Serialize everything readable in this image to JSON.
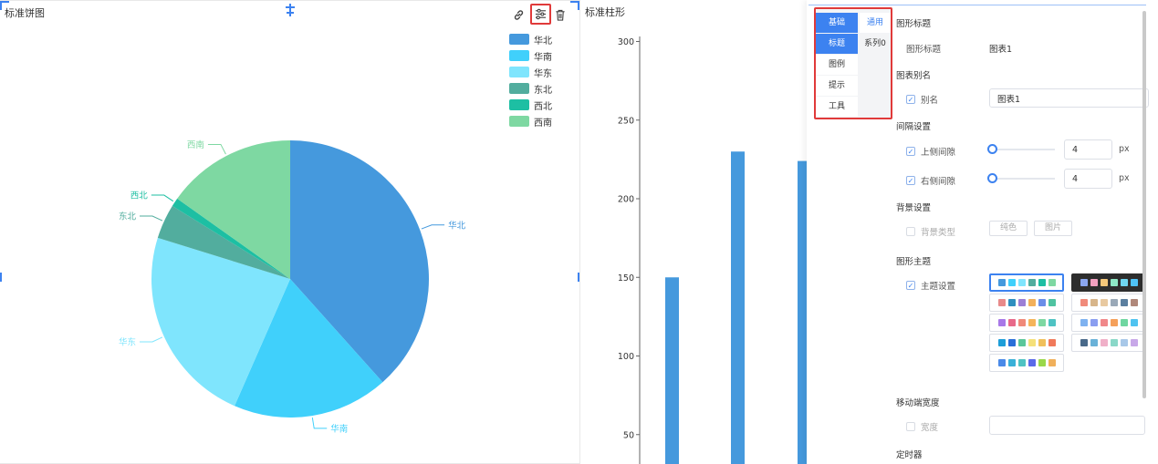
{
  "pie": {
    "title": "标准饼图",
    "legend": [
      {
        "name": "华北",
        "color": "#4599dd"
      },
      {
        "name": "华南",
        "color": "#40d0fb"
      },
      {
        "name": "华东",
        "color": "#7fe5fd"
      },
      {
        "name": "东北",
        "color": "#52ad9e"
      },
      {
        "name": "西北",
        "color": "#1dbfa3"
      },
      {
        "name": "西南",
        "color": "#7ed8a2"
      }
    ],
    "icons": [
      "link-icon",
      "settings-sliders-icon",
      "trash-icon",
      "align-center-icon"
    ]
  },
  "bar": {
    "title": "标准柱形"
  },
  "chart_data": [
    {
      "type": "pie",
      "title": "标准饼图",
      "categories": [
        "华北",
        "华南",
        "华东",
        "东北",
        "西北",
        "西南"
      ],
      "values": [
        38,
        18,
        23,
        4,
        1,
        15
      ],
      "colors": [
        "#4599dd",
        "#40d0fb",
        "#7fe5fd",
        "#52ad9e",
        "#1dbfa3",
        "#7ed8a2"
      ],
      "legend": "top-right"
    },
    {
      "type": "bar",
      "title": "标准柱形",
      "categories": [
        "",
        "",
        ""
      ],
      "values": [
        150,
        230,
        224
      ],
      "ylim": [
        0,
        300
      ],
      "yticks": [
        "300",
        "250",
        "200",
        "150",
        "100",
        "50"
      ],
      "color": "#4599dd",
      "grid": false
    }
  ],
  "config": {
    "tabs_left": [
      "基础",
      "标题",
      "图例",
      "提示",
      "工具"
    ],
    "tabs_right": [
      "通用",
      "系列0"
    ],
    "sections": {
      "chart_title": "图形标题",
      "chart_title_label": "图形标题",
      "chart_title_value": "图表1",
      "alias_section": "图表别名",
      "alias_label": "别名",
      "alias_value": "图表1",
      "spacing_section": "间隔设置",
      "top_spacing_label": "上侧间隙",
      "top_spacing_value": "4",
      "right_spacing_label": "右侧间隙",
      "right_spacing_value": "4",
      "unit": "px",
      "bg_section": "背景设置",
      "bg_type_label": "背景类型",
      "bg_btn_solid": "纯色",
      "bg_btn_image": "图片",
      "theme_section": "图形主题",
      "theme_label": "主题设置",
      "mobile_section": "移动端宽度",
      "width_label": "宽度",
      "timer_section": "定时器"
    },
    "themes": [
      [
        "#4599dd",
        "#40d0fb",
        "#7fe5fd",
        "#52ad9e",
        "#1dbfa3",
        "#7ed8a2"
      ],
      [
        "#8ba7f0",
        "#f3a0c0",
        "#f5c77a",
        "#8ee8c6",
        "#6fd6f0",
        "#4fc3f7"
      ],
      [
        "#e88a8a",
        "#2f8fbf",
        "#9c7fd6",
        "#f2b05b",
        "#6a8ee8",
        "#4fc3a1"
      ],
      [
        "#f08a7a",
        "#d7b58a",
        "#e8c9a0",
        "#9aa9b8",
        "#5b7f9f",
        "#b0887a"
      ],
      [
        "#a879e8",
        "#e86a8a",
        "#f08a7a",
        "#f5b55b",
        "#7ed8a2",
        "#4fc3c3"
      ],
      [
        "#7fb2f0",
        "#8a9ef0",
        "#f0888a",
        "#f5a05b",
        "#6fd6a0",
        "#4fc3f0"
      ],
      [
        "#1e9ed8",
        "#2a6fd8",
        "#5bc79a",
        "#f5e07a",
        "#f0c05b",
        "#f07a5b"
      ],
      [
        "#4a6a8a",
        "#6ab2d8",
        "#f0b0c8",
        "#8ad8c8",
        "#a8c8e8",
        "#c8a8e8"
      ],
      [
        "#4a8ae8",
        "#3ab0d8",
        "#4fc3c3",
        "#5a6ae8",
        "#9ad84a",
        "#f0b05b"
      ]
    ]
  }
}
